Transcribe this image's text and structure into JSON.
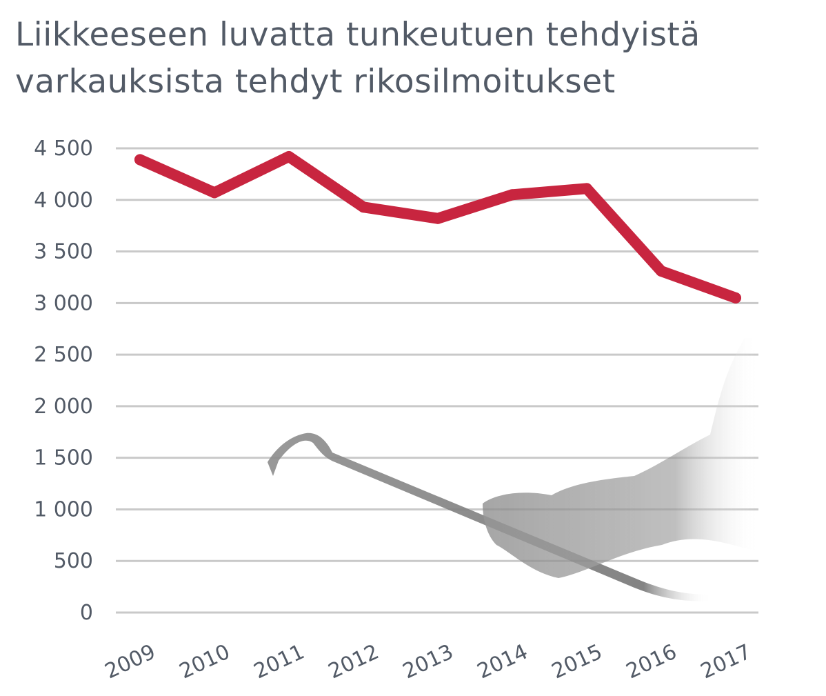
{
  "chart_data": {
    "type": "line",
    "title_lines": [
      "Liikkeeseen luvatta tunkeutuen tehdyistä",
      "varkauksista tehdyt rikosilmoitukset"
    ],
    "categories": [
      "2009",
      "2010",
      "2011",
      "2012",
      "2013",
      "2014",
      "2015",
      "2016",
      "2017"
    ],
    "series": [
      {
        "values": [
          4390,
          4070,
          4420,
          3930,
          3820,
          4050,
          4110,
          3310,
          3050
        ],
        "color": "#c8253f"
      }
    ],
    "yticks": [
      {
        "value": 0,
        "label": "0"
      },
      {
        "value": 500,
        "label": "500"
      },
      {
        "value": 1000,
        "label": "1 000"
      },
      {
        "value": 1500,
        "label": "1 500"
      },
      {
        "value": 2000,
        "label": "2 000"
      },
      {
        "value": 2500,
        "label": "2 500"
      },
      {
        "value": 3000,
        "label": "3 000"
      },
      {
        "value": 3500,
        "label": "3 500"
      },
      {
        "value": 4000,
        "label": "4 000"
      },
      {
        "value": 4500,
        "label": "4 500"
      }
    ],
    "ylim": [
      0,
      4500
    ],
    "grid": true,
    "decoration": "crowbar-hand-illustration"
  }
}
